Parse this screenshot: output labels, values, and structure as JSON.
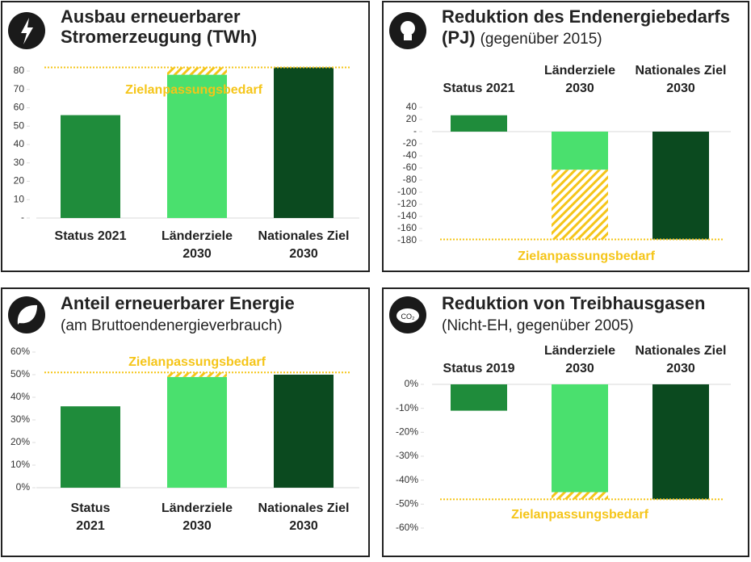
{
  "chart_data": [
    {
      "type": "bar",
      "title": "Ausbau erneuerbarer\nStromerzeugung (TWh)",
      "categories": [
        "Status 2021",
        "Länderziele\n2030",
        "Nationales Ziel\n2030"
      ],
      "series": [
        {
          "values": [
            56,
            78,
            82
          ],
          "colors": [
            "#1f8c3b",
            "#4ae06e",
            "#0b4a1f"
          ]
        },
        {
          "name": "Zielanpassungsbedarf",
          "color": "#f5c518",
          "pattern": "hatch",
          "values": [
            null,
            4,
            null
          ]
        }
      ],
      "target": 82,
      "ylim": [
        0,
        90
      ],
      "yticks": [
        {
          "value": 0,
          "label": "-"
        },
        10,
        20,
        30,
        40,
        50,
        60,
        70,
        80
      ]
    },
    {
      "type": "bar",
      "title": "Reduktion des Endenergiebedarfs",
      "unit": "(PJ)",
      "subtitle": "(gegenüber 2015)",
      "categories": [
        "Status 2021",
        "Länderziele\n2030",
        "Nationales Ziel\n2030"
      ],
      "series": [
        {
          "values": [
            27,
            -63,
            -178
          ],
          "colors": [
            "#1f8c3b",
            "#4ae06e",
            "#0b4a1f"
          ]
        },
        {
          "name": "Zielanpassungsbedarf",
          "color": "#f5c518",
          "pattern": "hatch",
          "values": [
            null,
            -115,
            null
          ]
        }
      ],
      "target": -178,
      "ylim": [
        -180,
        40
      ],
      "yticks": [
        40,
        20,
        {
          "value": 0,
          "label": "-"
        },
        -20,
        -40,
        -60,
        -80,
        -100,
        -120,
        -140,
        -160,
        -180
      ]
    },
    {
      "type": "bar",
      "title": "Anteil erneuerbarer Energie",
      "subtitle": "(am Bruttoendenergieverbrauch)",
      "categories": [
        "Status\n2021",
        "Länderziele\n2030",
        "Nationales Ziel\n2030"
      ],
      "series": [
        {
          "values": [
            36,
            49,
            50
          ],
          "colors": [
            "#1f8c3b",
            "#4ae06e",
            "#0b4a1f"
          ]
        },
        {
          "name": "Zielanpassungsbedarf",
          "color": "#f5c518",
          "pattern": "hatch",
          "values": [
            null,
            2,
            null
          ]
        }
      ],
      "target": 51,
      "ylim": [
        0,
        60
      ],
      "yticks": [
        {
          "value": 0,
          "label": "0%"
        },
        {
          "value": 10,
          "label": "10%"
        },
        {
          "value": 20,
          "label": "20%"
        },
        {
          "value": 30,
          "label": "30%"
        },
        {
          "value": 40,
          "label": "40%"
        },
        {
          "value": 50,
          "label": "50%"
        },
        {
          "value": 60,
          "label": "60%"
        }
      ]
    },
    {
      "type": "bar",
      "title": "Reduktion von Treibhausgasen",
      "subtitle": "(Nicht-EH, gegenüber 2005)",
      "categories": [
        "Status 2019",
        "Länderziele\n2030",
        "Nationales Ziel\n2030"
      ],
      "series": [
        {
          "values": [
            -11,
            -45,
            -48
          ],
          "colors": [
            "#1f8c3b",
            "#4ae06e",
            "#0b4a1f"
          ]
        },
        {
          "name": "Zielanpassungsbedarf",
          "color": "#f5c518",
          "pattern": "hatch",
          "values": [
            null,
            -3,
            null
          ]
        }
      ],
      "target": -48,
      "ylim": [
        -60,
        0
      ],
      "yticks": [
        {
          "value": 0,
          "label": "0%"
        },
        {
          "value": -10,
          "label": "-10%"
        },
        {
          "value": -20,
          "label": "-20%"
        },
        {
          "value": -30,
          "label": "-30%"
        },
        {
          "value": -40,
          "label": "-40%"
        },
        {
          "value": -50,
          "label": "-50%"
        },
        {
          "value": -60,
          "label": "-60%"
        }
      ]
    }
  ]
}
